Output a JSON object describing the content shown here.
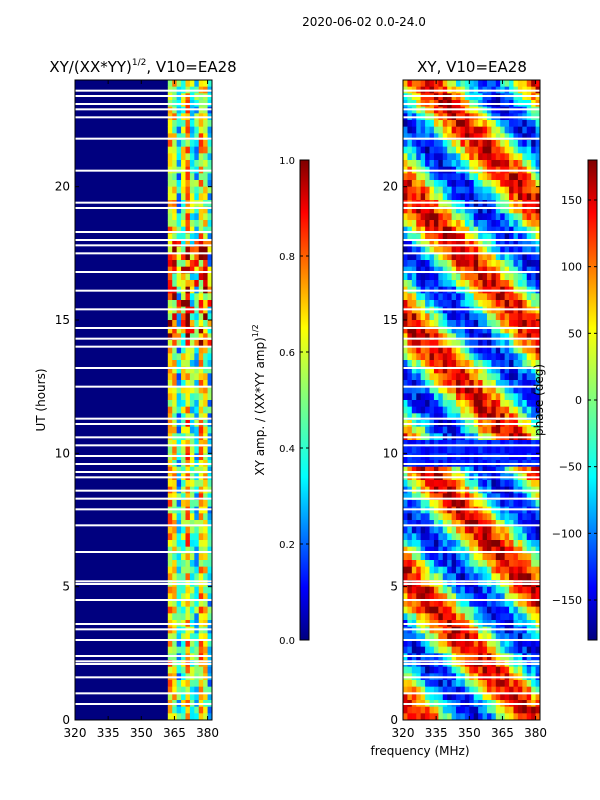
{
  "suptitle": "2020-06-02 0.0-24.0",
  "xlabel_shared": "frequency (MHz)",
  "colormap": [
    "#00007f",
    "#0000ff",
    "#007fff",
    "#00ffff",
    "#7fff7f",
    "#ffff00",
    "#ff7f00",
    "#ff0000",
    "#7f0000"
  ],
  "chart_data": [
    {
      "type": "heatmap",
      "title_main": "XY/(XX*YY)",
      "title_sup": "1/2",
      "title_tail": ", V10=EA28",
      "ylabel": "UT (hours)",
      "xlim": [
        320,
        382
      ],
      "ylim": [
        0,
        24
      ],
      "xticks": [
        "320",
        "335",
        "350",
        "365",
        "380"
      ],
      "xtick_values": [
        320,
        335,
        350,
        365,
        380
      ],
      "yticks": [
        "0",
        "5",
        "10",
        "15",
        "20"
      ],
      "ytick_values": [
        0,
        5,
        10,
        15,
        20
      ],
      "colorbar": {
        "label_main": "XY amp. / (XX*YY amp)",
        "label_sup": "1/2",
        "range": [
          0.0,
          1.0
        ],
        "ticks": [
          "0.0",
          "0.2",
          "0.4",
          "0.6",
          "0.8",
          "1.0"
        ],
        "tick_values": [
          0.0,
          0.2,
          0.4,
          0.6,
          0.8,
          1.0
        ]
      }
    },
    {
      "type": "heatmap",
      "title_main": "XY, V10=EA28",
      "xlim": [
        320,
        382
      ],
      "ylim": [
        0,
        24
      ],
      "xticks": [
        "320",
        "335",
        "350",
        "365",
        "380"
      ],
      "xtick_values": [
        320,
        335,
        350,
        365,
        380
      ],
      "yticks": [
        "0",
        "5",
        "10",
        "15",
        "20"
      ],
      "ytick_values": [
        0,
        5,
        10,
        15,
        20
      ],
      "colorbar": {
        "label_main": "phase (deg)",
        "range": [
          -180,
          180
        ],
        "ticks": [
          "−150",
          "−100",
          "−50",
          "0",
          "50",
          "100",
          "150"
        ],
        "tick_values": [
          -150,
          -100,
          -50,
          0,
          50,
          100,
          150
        ]
      }
    }
  ]
}
